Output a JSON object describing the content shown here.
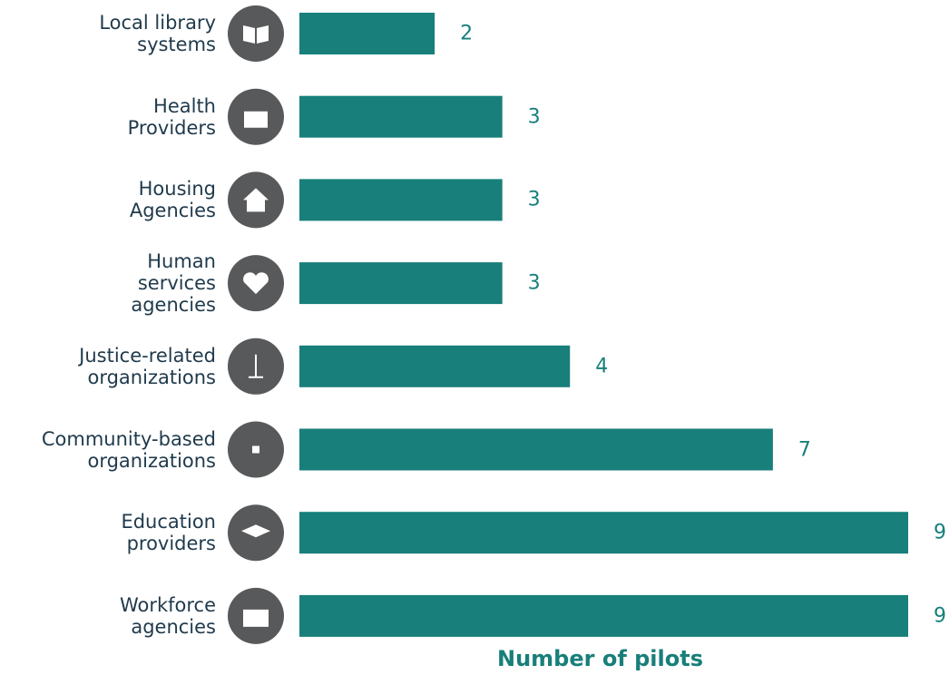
{
  "chart_data": {
    "type": "bar",
    "orientation": "horizontal",
    "categories": [
      "Local library\nsystems",
      "Health\nProviders",
      "Housing\nAgencies",
      "Human\nservices\nagencies",
      "Justice-related\norganizations",
      "Community-based\norganizations",
      "Education\nproviders",
      "Workforce\nagencies"
    ],
    "values": [
      2,
      3,
      3,
      3,
      4,
      7,
      9,
      9
    ],
    "color": "#187f7a",
    "x_label": "Number of pilots"
  }
}
